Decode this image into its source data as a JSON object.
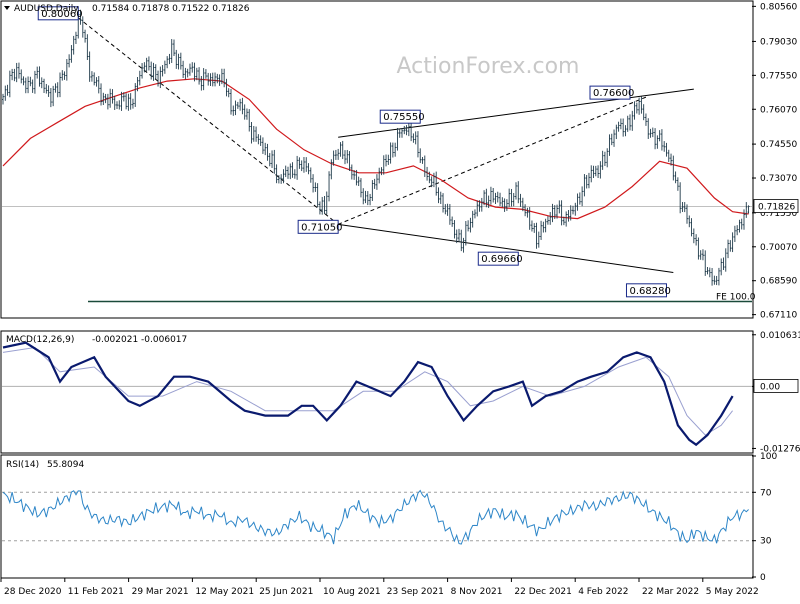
{
  "chart_data": [
    {
      "type": "candlestick",
      "header": {
        "symbol_label": "AUDUSD,Daily",
        "ohlc_text": "0.71584 0.71878 0.71522 0.71826"
      },
      "ohlc": {
        "open": 0.71584,
        "high": 0.71878,
        "low": 0.71522,
        "close": 0.71826
      },
      "ylim": [
        0.6705,
        0.8075
      ],
      "y_ticks": [
        "0.80560",
        "0.79030",
        "0.77550",
        "0.76070",
        "0.74550",
        "0.73070",
        "0.71550",
        "0.70070",
        "0.68590",
        "0.67110"
      ],
      "last_price_label": "0.71826",
      "x_ticks": [
        "28 Dec 2020",
        "11 Feb 2021",
        "29 Mar 2021",
        "12 May 2021",
        "25 Jun 2021",
        "10 Aug 2021",
        "23 Sep 2021",
        "8 Nov 2021",
        "22 Dec 2021",
        "4 Feb 2022",
        "22 Mar 2022",
        "5 May 2022"
      ],
      "price_path": [
        [
          0,
          0.765
        ],
        [
          3,
          0.774
        ],
        [
          6,
          0.778
        ],
        [
          9,
          0.772
        ],
        [
          12,
          0.771
        ],
        [
          15,
          0.776
        ],
        [
          18,
          0.77
        ],
        [
          21,
          0.766
        ],
        [
          24,
          0.771
        ],
        [
          27,
          0.777
        ],
        [
          30,
          0.786
        ],
        [
          33,
          0.8
        ],
        [
          35,
          0.797
        ],
        [
          38,
          0.776
        ],
        [
          41,
          0.772
        ],
        [
          44,
          0.764
        ],
        [
          47,
          0.766
        ],
        [
          50,
          0.762
        ],
        [
          53,
          0.766
        ],
        [
          56,
          0.762
        ],
        [
          59,
          0.773
        ],
        [
          62,
          0.781
        ],
        [
          65,
          0.778
        ],
        [
          68,
          0.774
        ],
        [
          71,
          0.78
        ],
        [
          74,
          0.787
        ],
        [
          77,
          0.781
        ],
        [
          80,
          0.776
        ],
        [
          83,
          0.779
        ],
        [
          86,
          0.773
        ],
        [
          89,
          0.775
        ],
        [
          92,
          0.773
        ],
        [
          95,
          0.775
        ],
        [
          98,
          0.771
        ],
        [
          100,
          0.76
        ],
        [
          103,
          0.763
        ],
        [
          106,
          0.76
        ],
        [
          109,
          0.75
        ],
        [
          112,
          0.748
        ],
        [
          115,
          0.742
        ],
        [
          118,
          0.738
        ],
        [
          121,
          0.729
        ],
        [
          124,
          0.734
        ],
        [
          127,
          0.733
        ],
        [
          130,
          0.737
        ],
        [
          133,
          0.736
        ],
        [
          136,
          0.728
        ],
        [
          138,
          0.72
        ],
        [
          141,
          0.717
        ],
        [
          144,
          0.738
        ],
        [
          147,
          0.743
        ],
        [
          150,
          0.741
        ],
        [
          153,
          0.733
        ],
        [
          156,
          0.728
        ],
        [
          159,
          0.72
        ],
        [
          162,
          0.726
        ],
        [
          165,
          0.733
        ],
        [
          168,
          0.739
        ],
        [
          171,
          0.743
        ],
        [
          174,
          0.751
        ],
        [
          177,
          0.752
        ],
        [
          180,
          0.749
        ],
        [
          183,
          0.74
        ],
        [
          186,
          0.731
        ],
        [
          189,
          0.729
        ],
        [
          192,
          0.72
        ],
        [
          195,
          0.716
        ],
        [
          198,
          0.707
        ],
        [
          201,
          0.702
        ],
        [
          204,
          0.71
        ],
        [
          207,
          0.716
        ],
        [
          210,
          0.721
        ],
        [
          213,
          0.722
        ],
        [
          216,
          0.723
        ],
        [
          219,
          0.719
        ],
        [
          222,
          0.721
        ],
        [
          225,
          0.725
        ],
        [
          228,
          0.718
        ],
        [
          231,
          0.712
        ],
        [
          234,
          0.704
        ],
        [
          237,
          0.71
        ],
        [
          240,
          0.714
        ],
        [
          243,
          0.718
        ],
        [
          246,
          0.712
        ],
        [
          249,
          0.716
        ],
        [
          252,
          0.72
        ],
        [
          255,
          0.728
        ],
        [
          258,
          0.733
        ],
        [
          261,
          0.734
        ],
        [
          264,
          0.74
        ],
        [
          267,
          0.748
        ],
        [
          270,
          0.754
        ],
        [
          273,
          0.752
        ],
        [
          276,
          0.758
        ],
        [
          279,
          0.764
        ],
        [
          282,
          0.754
        ],
        [
          285,
          0.748
        ],
        [
          288,
          0.748
        ],
        [
          291,
          0.742
        ],
        [
          294,
          0.734
        ],
        [
          297,
          0.72
        ],
        [
          300,
          0.714
        ],
        [
          303,
          0.704
        ],
        [
          306,
          0.697
        ],
        [
          309,
          0.69
        ],
        [
          312,
          0.685
        ],
        [
          315,
          0.692
        ],
        [
          318,
          0.7
        ],
        [
          321,
          0.707
        ],
        [
          324,
          0.712
        ],
        [
          327,
          0.7183
        ]
      ],
      "ma_path": [
        [
          0,
          0.736
        ],
        [
          12,
          0.748
        ],
        [
          24,
          0.755
        ],
        [
          36,
          0.762
        ],
        [
          48,
          0.766
        ],
        [
          60,
          0.77
        ],
        [
          72,
          0.773
        ],
        [
          84,
          0.774
        ],
        [
          96,
          0.773
        ],
        [
          108,
          0.765
        ],
        [
          120,
          0.752
        ],
        [
          132,
          0.743
        ],
        [
          144,
          0.737
        ],
        [
          156,
          0.733
        ],
        [
          168,
          0.733
        ],
        [
          180,
          0.736
        ],
        [
          192,
          0.73
        ],
        [
          204,
          0.722
        ],
        [
          216,
          0.718
        ],
        [
          228,
          0.717
        ],
        [
          240,
          0.714
        ],
        [
          252,
          0.713
        ],
        [
          264,
          0.718
        ],
        [
          276,
          0.727
        ],
        [
          288,
          0.738
        ],
        [
          300,
          0.735
        ],
        [
          312,
          0.722
        ],
        [
          320,
          0.716
        ],
        [
          327,
          0.715
        ]
      ],
      "trendlines": [
        {
          "from": [
            33,
            0.8006
          ],
          "to": [
            147,
            0.7105
          ],
          "style": "dashed"
        },
        {
          "from": [
            147,
            0.7105
          ],
          "to": [
            294,
            0.6895
          ],
          "style": "solid"
        },
        {
          "from": [
            147,
            0.7105
          ],
          "to": [
            282,
            0.766
          ],
          "style": "dashed"
        },
        {
          "from": [
            147,
            0.7485
          ],
          "to": [
            303,
            0.7695
          ],
          "style": "solid"
        }
      ],
      "annotations": [
        {
          "text": "0.80060",
          "x": 33,
          "y": 0.8006
        },
        {
          "text": "0.75550",
          "x": 183,
          "y": 0.7555
        },
        {
          "text": "0.71050",
          "x": 147,
          "y": 0.7105
        },
        {
          "text": "0.69660",
          "x": 226,
          "y": 0.6966
        },
        {
          "text": "0.76600",
          "x": 275,
          "y": 0.766
        },
        {
          "text": "0.68280",
          "x": 291,
          "y": 0.6828
        }
      ],
      "fe_level": {
        "label": "FE 100.0",
        "value": 0.6768
      },
      "watermark": "ActionForex.com",
      "colors": {
        "candles": "#1f3a4a",
        "ma": "#d0191c",
        "trend": "#000000"
      }
    },
    {
      "type": "line",
      "header": {
        "name_label": "MACD(12,26,9)",
        "values_text": "-0.002021 -0.006017"
      },
      "ylim": [
        -0.0135,
        0.0112
      ],
      "y_ticks": [
        "0.010631",
        "0.00",
        "-0.012767"
      ],
      "last_label": "0.00",
      "colors": {
        "macd": "#0a1a6e",
        "signal": "#9aa0d0"
      },
      "macd_path": [
        [
          0,
          0.008
        ],
        [
          10,
          0.009
        ],
        [
          20,
          0.006
        ],
        [
          25,
          0.001
        ],
        [
          30,
          0.004
        ],
        [
          40,
          0.006
        ],
        [
          45,
          0.002
        ],
        [
          55,
          -0.003
        ],
        [
          60,
          -0.004
        ],
        [
          68,
          -0.002
        ],
        [
          75,
          0.002
        ],
        [
          82,
          0.002
        ],
        [
          90,
          0.001
        ],
        [
          100,
          -0.003
        ],
        [
          106,
          -0.005
        ],
        [
          115,
          -0.006
        ],
        [
          125,
          -0.006
        ],
        [
          131,
          -0.004
        ],
        [
          136,
          -0.004
        ],
        [
          142,
          -0.007
        ],
        [
          148,
          -0.004
        ],
        [
          155,
          0.001
        ],
        [
          160,
          0.0
        ],
        [
          170,
          -0.002
        ],
        [
          176,
          0.001
        ],
        [
          182,
          0.005
        ],
        [
          188,
          0.004
        ],
        [
          195,
          -0.002
        ],
        [
          202,
          -0.007
        ],
        [
          208,
          -0.004
        ],
        [
          215,
          -0.001
        ],
        [
          222,
          0.0
        ],
        [
          228,
          0.001
        ],
        [
          232,
          -0.004
        ],
        [
          238,
          -0.002
        ],
        [
          245,
          -0.001
        ],
        [
          252,
          0.001
        ],
        [
          258,
          0.002
        ],
        [
          265,
          0.003
        ],
        [
          272,
          0.006
        ],
        [
          278,
          0.007
        ],
        [
          284,
          0.006
        ],
        [
          290,
          0.001
        ],
        [
          296,
          -0.008
        ],
        [
          301,
          -0.011
        ],
        [
          304,
          -0.012
        ],
        [
          309,
          -0.01
        ],
        [
          315,
          -0.006
        ],
        [
          320,
          -0.002
        ]
      ],
      "signal_path": [
        [
          0,
          0.007
        ],
        [
          14,
          0.008
        ],
        [
          25,
          0.003
        ],
        [
          40,
          0.004
        ],
        [
          55,
          -0.002
        ],
        [
          70,
          -0.002
        ],
        [
          85,
          0.001
        ],
        [
          100,
          -0.001
        ],
        [
          115,
          -0.005
        ],
        [
          130,
          -0.005
        ],
        [
          145,
          -0.005
        ],
        [
          158,
          -0.001
        ],
        [
          172,
          -0.001
        ],
        [
          185,
          0.003
        ],
        [
          195,
          0.001
        ],
        [
          205,
          -0.004
        ],
        [
          215,
          -0.003
        ],
        [
          228,
          0.0
        ],
        [
          240,
          -0.002
        ],
        [
          255,
          0.0
        ],
        [
          270,
          0.004
        ],
        [
          282,
          0.006
        ],
        [
          292,
          0.002
        ],
        [
          300,
          -0.006
        ],
        [
          308,
          -0.01
        ],
        [
          315,
          -0.008
        ],
        [
          320,
          -0.005
        ]
      ]
    },
    {
      "type": "line",
      "header": {
        "name_label": "RSI(14)",
        "value_text": "55.8094"
      },
      "ylim": [
        0,
        100
      ],
      "y_ticks": [
        "100",
        "70",
        "30",
        "0"
      ],
      "levels": [
        70,
        30
      ],
      "color": "#2e86c8",
      "rsi_path": [
        [
          0,
          68
        ],
        [
          5,
          64
        ],
        [
          10,
          58
        ],
        [
          15,
          52
        ],
        [
          20,
          55
        ],
        [
          25,
          62
        ],
        [
          30,
          68
        ],
        [
          33,
          72
        ],
        [
          36,
          58
        ],
        [
          40,
          50
        ],
        [
          45,
          46
        ],
        [
          50,
          48
        ],
        [
          55,
          45
        ],
        [
          60,
          50
        ],
        [
          65,
          55
        ],
        [
          70,
          58
        ],
        [
          75,
          60
        ],
        [
          80,
          52
        ],
        [
          85,
          55
        ],
        [
          90,
          50
        ],
        [
          95,
          52
        ],
        [
          100,
          44
        ],
        [
          105,
          48
        ],
        [
          110,
          42
        ],
        [
          115,
          38
        ],
        [
          120,
          36
        ],
        [
          125,
          44
        ],
        [
          130,
          50
        ],
        [
          135,
          42
        ],
        [
          140,
          38
        ],
        [
          145,
          32
        ],
        [
          150,
          52
        ],
        [
          155,
          60
        ],
        [
          160,
          52
        ],
        [
          165,
          45
        ],
        [
          170,
          48
        ],
        [
          175,
          58
        ],
        [
          180,
          66
        ],
        [
          184,
          70
        ],
        [
          188,
          60
        ],
        [
          192,
          45
        ],
        [
          196,
          38
        ],
        [
          200,
          28
        ],
        [
          204,
          35
        ],
        [
          208,
          46
        ],
        [
          212,
          52
        ],
        [
          216,
          55
        ],
        [
          220,
          50
        ],
        [
          225,
          52
        ],
        [
          230,
          44
        ],
        [
          235,
          38
        ],
        [
          240,
          46
        ],
        [
          245,
          52
        ],
        [
          250,
          55
        ],
        [
          255,
          60
        ],
        [
          260,
          58
        ],
        [
          265,
          63
        ],
        [
          270,
          65
        ],
        [
          275,
          68
        ],
        [
          280,
          62
        ],
        [
          284,
          55
        ],
        [
          288,
          50
        ],
        [
          292,
          45
        ],
        [
          296,
          36
        ],
        [
          300,
          30
        ],
        [
          304,
          38
        ],
        [
          308,
          33
        ],
        [
          312,
          30
        ],
        [
          316,
          40
        ],
        [
          320,
          50
        ],
        [
          324,
          52
        ],
        [
          327,
          55.8
        ]
      ]
    }
  ]
}
